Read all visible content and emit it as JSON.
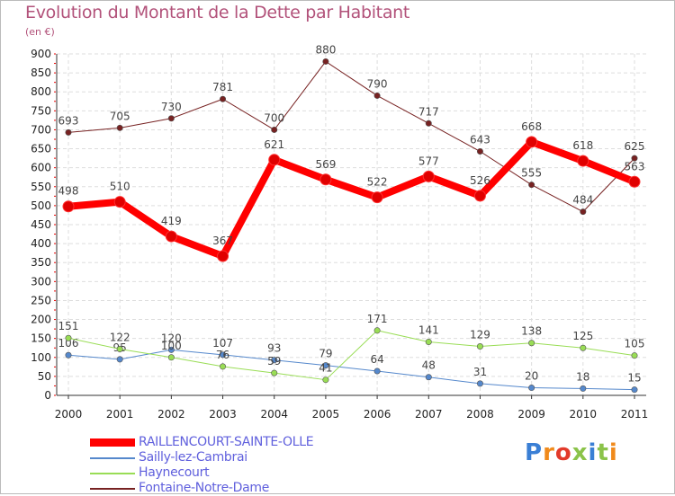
{
  "page": {
    "title": "Evolution du Montant de la Dette par Habitant",
    "subtitle": "(en €)",
    "logo_text": "Proxiti"
  },
  "chart_data": {
    "type": "line",
    "title": "Evolution du Montant de la Dette par Habitant",
    "ylabel": "(en €)",
    "xlabel": "",
    "ylim": [
      0,
      900
    ],
    "yticks": [
      0,
      50,
      100,
      150,
      200,
      250,
      300,
      350,
      400,
      450,
      500,
      550,
      600,
      650,
      700,
      750,
      800,
      850,
      900
    ],
    "categories": [
      "2000",
      "2001",
      "2002",
      "2003",
      "2004",
      "2005",
      "2006",
      "2007",
      "2008",
      "2009",
      "2010",
      "2011"
    ],
    "legend_position": "bottom",
    "grid": true,
    "series": [
      {
        "name": "RAILLENCOURT-SAINTE-OLLE",
        "color": "#ff0000",
        "values": [
          498,
          510,
          419,
          367,
          621,
          569,
          522,
          577,
          526,
          668,
          618,
          563
        ]
      },
      {
        "name": "Sailly-lez-Cambrai",
        "color": "#5588cc",
        "values": [
          106,
          95,
          120,
          107,
          93,
          79,
          64,
          48,
          31,
          20,
          18,
          15
        ]
      },
      {
        "name": "Haynecourt",
        "color": "#99dd55",
        "values": [
          151,
          122,
          100,
          76,
          59,
          41,
          171,
          141,
          129,
          138,
          125,
          105
        ]
      },
      {
        "name": "Fontaine-Notre-Dame",
        "color": "#772222",
        "values": [
          693,
          705,
          730,
          781,
          700,
          880,
          790,
          717,
          643,
          555,
          484,
          625
        ]
      }
    ]
  }
}
